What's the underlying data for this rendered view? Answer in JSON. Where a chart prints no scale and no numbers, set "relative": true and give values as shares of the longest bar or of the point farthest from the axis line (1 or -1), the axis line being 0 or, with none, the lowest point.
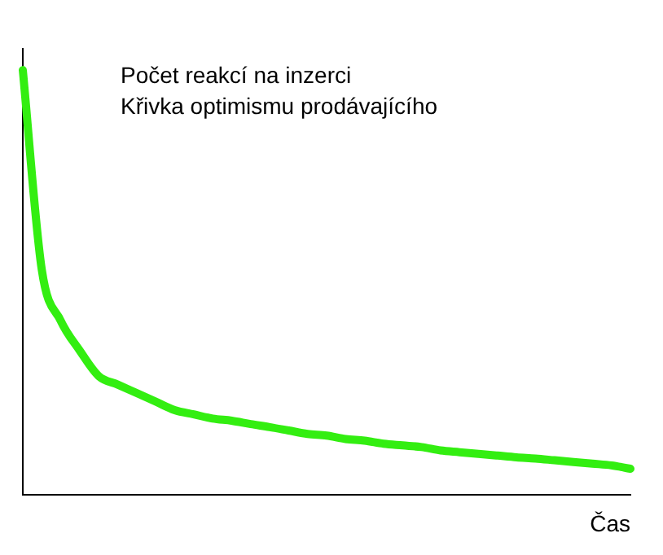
{
  "chart_data": {
    "type": "line",
    "title": "Počet reakcí na inzerci",
    "subtitle": "Křivka optimismu prodávajícího",
    "xlabel": "Čas",
    "relative": true,
    "legend": false,
    "grid": false,
    "marker": "none",
    "line_style": "solid",
    "categories": [
      null,
      null,
      null,
      null,
      null,
      null,
      null,
      null,
      null,
      null,
      null,
      null,
      null,
      null,
      null,
      null,
      null,
      null,
      null,
      null,
      null,
      null,
      null,
      null,
      null,
      null,
      null,
      null,
      null,
      null,
      null,
      null,
      null
    ],
    "series": [
      {
        "color": "#33ee11",
        "values": [
          1.0,
          0.53,
          0.41,
          0.34,
          0.28,
          0.26,
          0.24,
          0.22,
          0.2,
          0.19,
          0.18,
          0.175,
          0.167,
          0.16,
          0.152,
          0.144,
          0.14,
          0.132,
          0.128,
          0.121,
          0.117,
          0.113,
          0.105,
          0.101,
          0.097,
          0.093,
          0.089,
          0.086,
          0.082,
          0.078,
          0.074,
          0.07,
          0.062
        ]
      }
    ]
  }
}
